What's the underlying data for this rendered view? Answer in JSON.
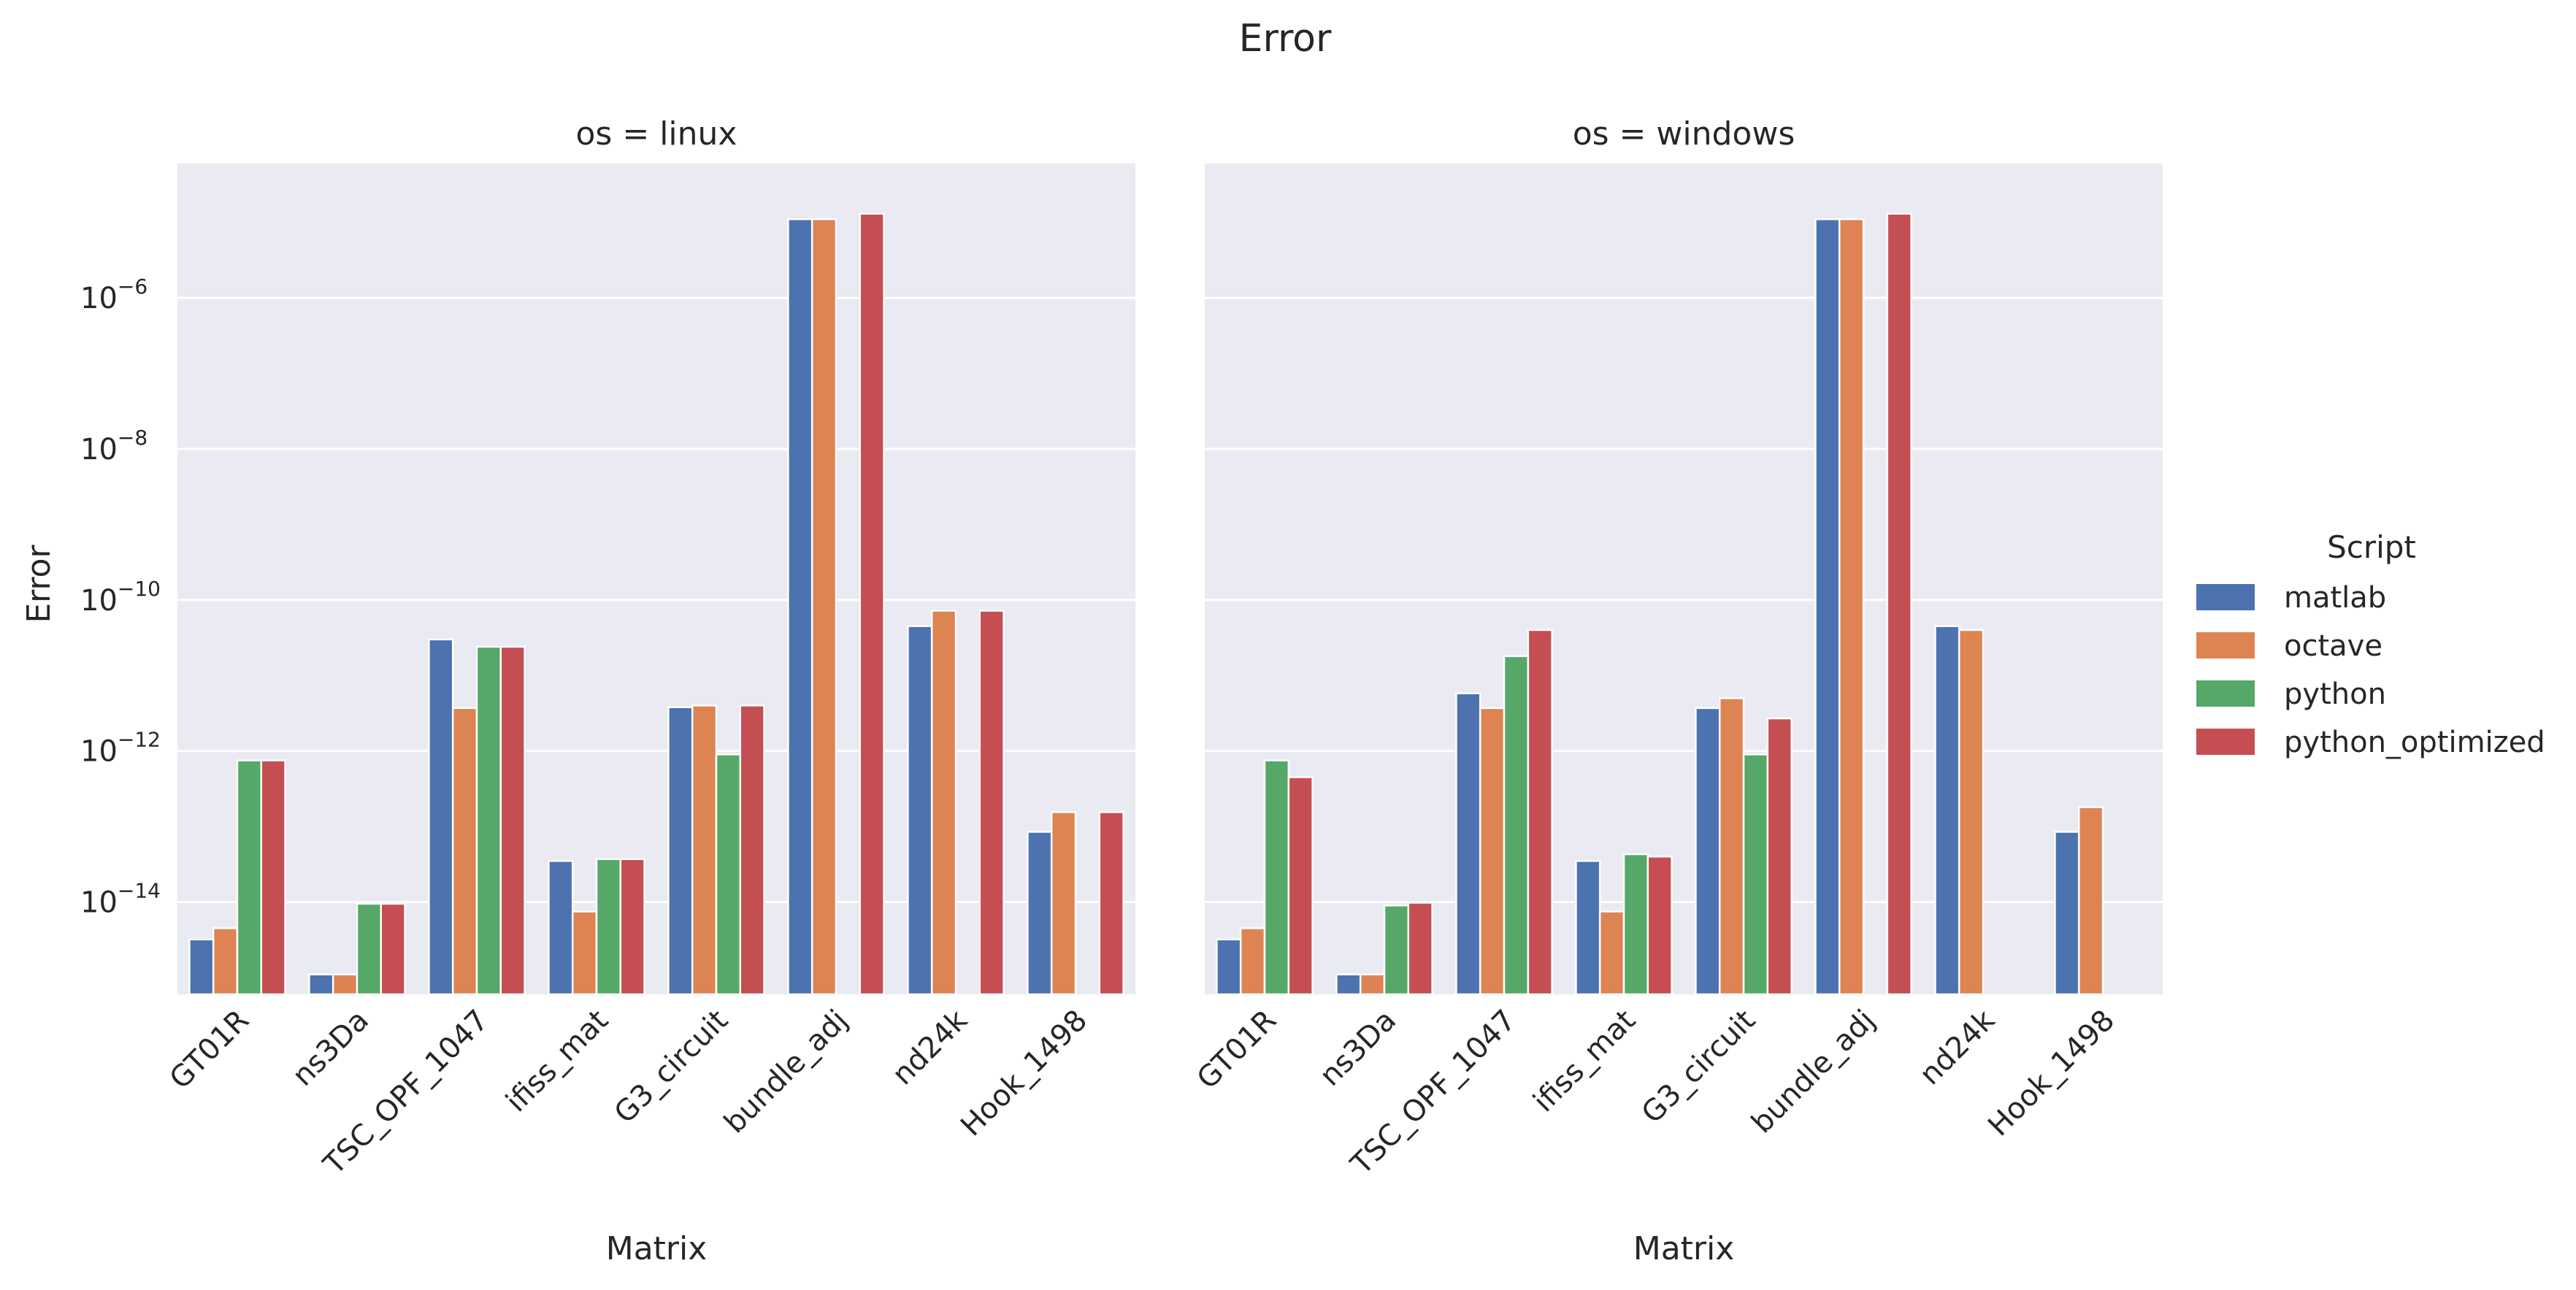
{
  "chart_data": {
    "type": "bar",
    "title": "Error",
    "xlabel": "Matrix",
    "ylabel": "Error",
    "yscale": "log",
    "ylim": [
      6e-16,
      6e-05
    ],
    "ytick_bases": [
      "10",
      "10",
      "10",
      "10",
      "10"
    ],
    "ytick_exponents": [
      "−14",
      "−12",
      "−10",
      "−8",
      "−6"
    ],
    "ytick_values": [
      1e-14,
      1e-12,
      1e-10,
      1e-08,
      1e-06
    ],
    "grid": true,
    "legend_position": "right",
    "legend_title": "Script",
    "categories": [
      "GT01R",
      "ns3Da",
      "TSC_OPF_1047",
      "ifiss_mat",
      "G3_circuit",
      "bundle_adj",
      "nd24k",
      "Hook_1498"
    ],
    "series_names": [
      "matlab",
      "octave",
      "python",
      "python_optimized"
    ],
    "colors": [
      "#4c72b0",
      "#dd8452",
      "#55a868",
      "#c44e52"
    ],
    "panels": [
      {
        "title": "os = linux",
        "series": [
          {
            "name": "matlab",
            "values": [
              3.2e-15,
              1.1e-15,
              3e-11,
              3.5e-14,
              3.8e-12,
              1.1e-05,
              4.5e-11,
              8.5e-14
            ]
          },
          {
            "name": "octave",
            "values": [
              4.5e-15,
              1.1e-15,
              3.7e-12,
              7.5e-15,
              4e-12,
              1.1e-05,
              7.2e-11,
              1.55e-13
            ]
          },
          {
            "name": "python",
            "values": [
              7.5e-13,
              9.5e-15,
              2.4e-11,
              3.7e-14,
              9e-13,
              null,
              null,
              null
            ]
          },
          {
            "name": "python_optimized",
            "values": [
              7.5e-13,
              9.5e-15,
              2.4e-11,
              3.7e-14,
              4e-12,
              1.3e-05,
              7.2e-11,
              1.55e-13
            ]
          }
        ]
      },
      {
        "title": "os = windows",
        "series": [
          {
            "name": "matlab",
            "values": [
              3.2e-15,
              1.1e-15,
              5.8e-12,
              3.5e-14,
              3.7e-12,
              1.1e-05,
              4.5e-11,
              8.5e-14
            ]
          },
          {
            "name": "octave",
            "values": [
              4.5e-15,
              1.1e-15,
              3.7e-12,
              7.5e-15,
              5e-12,
              1.1e-05,
              4e-11,
              1.8e-13
            ]
          },
          {
            "name": "python",
            "values": [
              7.5e-13,
              9e-15,
              1.8e-11,
              4.3e-14,
              9e-13,
              null,
              null,
              null
            ]
          },
          {
            "name": "python_optimized",
            "values": [
              4.5e-13,
              9.8e-15,
              4e-11,
              4e-14,
              2.7e-12,
              1.3e-05,
              null,
              null
            ]
          }
        ]
      }
    ]
  }
}
